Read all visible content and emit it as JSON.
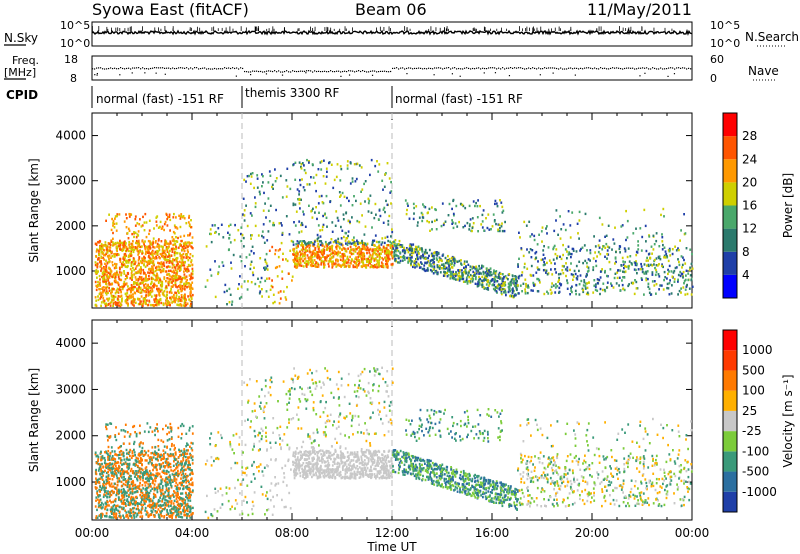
{
  "header": {
    "station": "Syowa East (fitACF)",
    "beam": "Beam 06",
    "date": "11/May/2011"
  },
  "top_panels": {
    "nsky_label": "N.Sky",
    "nsearch_label": "N.Search",
    "nsky_ticks": [
      "10^5",
      "10^0"
    ],
    "nsearch_ticks": [
      "10^5",
      "10^0"
    ],
    "freq_label": "Freq.",
    "freq_unit": "[MHz]",
    "freq_ticks": [
      "18",
      "8"
    ],
    "nave_label": "Nave",
    "nave_ticks": [
      "60",
      "0"
    ],
    "cpid_label": "CPID",
    "cpid_segments": [
      "normal (fast) -151 RF",
      "themis 3300 RF",
      "normal (fast) -151 RF"
    ]
  },
  "chart_data": [
    {
      "type": "heatmap",
      "name": "power",
      "ylabel": "Slant Range [km]",
      "ylim": [
        180,
        4500
      ],
      "yticks": [
        1000,
        2000,
        3000,
        4000
      ],
      "xlabel": "Time UT",
      "xticks": [
        "00:00",
        "04:00",
        "08:00",
        "12:00",
        "16:00",
        "20:00",
        "00:00"
      ],
      "xlim_hours": [
        0,
        24
      ],
      "colorbar": {
        "label": "Power [dB]",
        "ticks": [
          "28",
          "24",
          "20",
          "16",
          "12",
          "8",
          "4"
        ],
        "colors": [
          "#0000ff",
          "#1f3fa8",
          "#2b7a6d",
          "#4aa86b",
          "#cfcf00",
          "#ff9900",
          "#ff5500",
          "#ff0000"
        ]
      }
    },
    {
      "type": "heatmap",
      "name": "velocity",
      "ylabel": "Slant Range [km]",
      "ylim": [
        180,
        4500
      ],
      "yticks": [
        1000,
        2000,
        3000,
        4000
      ],
      "xlabel": "Time UT",
      "xticks": [
        "00:00",
        "04:00",
        "08:00",
        "12:00",
        "16:00",
        "20:00",
        "00:00"
      ],
      "xlim_hours": [
        0,
        24
      ],
      "colorbar": {
        "label": "Velocity [m s⁻¹]",
        "ticks": [
          "1000",
          "500",
          "100",
          "25",
          "-25",
          "-100",
          "-500",
          "-1000"
        ],
        "colors": [
          "#1f3fa8",
          "#2b6fa0",
          "#3a9a7a",
          "#7ccc3a",
          "#c8c8c8",
          "#ffb000",
          "#ff7a00",
          "#ff3a00",
          "#ff0000"
        ]
      }
    }
  ]
}
